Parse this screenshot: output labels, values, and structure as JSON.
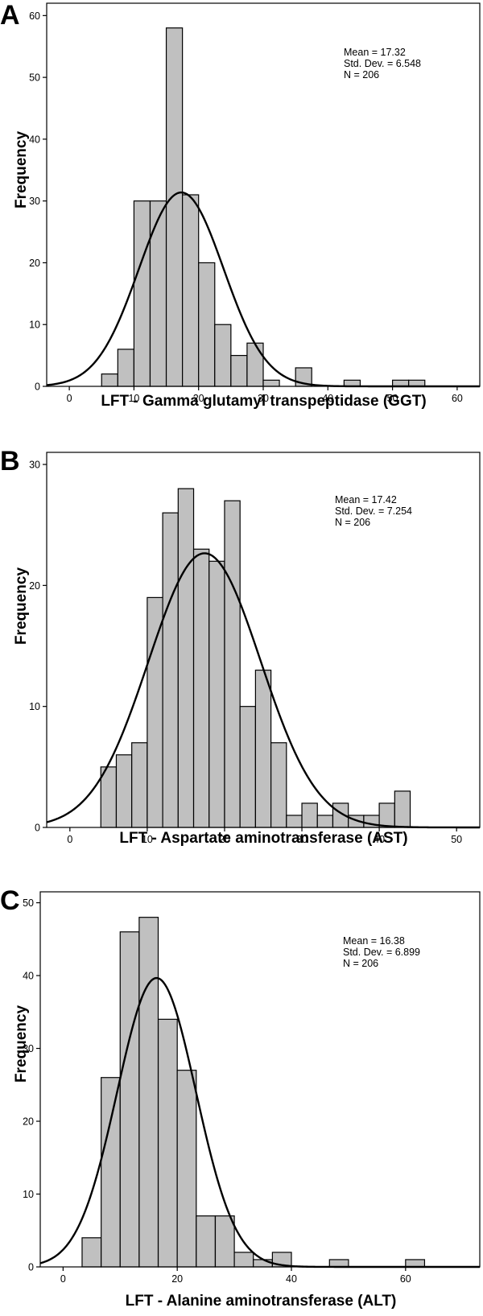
{
  "chart_data": [
    {
      "panel": "A",
      "type": "bar",
      "xlabel": "LFT - Gamma glutamyl transpeptidase (GGT)",
      "ylabel": "Frequency",
      "xlim": [
        -3.5,
        63.5
      ],
      "ylim": [
        0,
        62
      ],
      "xticks": [
        0,
        10,
        20,
        30,
        40,
        50,
        60
      ],
      "yticks": [
        0,
        10,
        20,
        30,
        40,
        50,
        60
      ],
      "bin_width": 2.5,
      "bins": [
        {
          "x0": 5,
          "count": 2
        },
        {
          "x0": 7.5,
          "count": 6
        },
        {
          "x0": 10,
          "count": 30
        },
        {
          "x0": 12.5,
          "count": 30
        },
        {
          "x0": 15,
          "count": 58
        },
        {
          "x0": 17.5,
          "count": 31
        },
        {
          "x0": 20,
          "count": 20
        },
        {
          "x0": 22.5,
          "count": 10
        },
        {
          "x0": 25,
          "count": 5
        },
        {
          "x0": 27.5,
          "count": 7
        },
        {
          "x0": 30,
          "count": 1
        },
        {
          "x0": 35,
          "count": 3
        },
        {
          "x0": 42.5,
          "count": 1
        },
        {
          "x0": 50,
          "count": 1
        },
        {
          "x0": 52.5,
          "count": 1
        }
      ],
      "stats": {
        "mean": "Mean = 17.32",
        "sd": "Std. Dev. = 6.548",
        "n": "N = 206"
      },
      "curve": {
        "mean": 17.32,
        "sd": 6.548,
        "n": 206
      }
    },
    {
      "panel": "B",
      "type": "bar",
      "xlabel": "LFT - Aspartate aminotransferase (AST)",
      "ylabel": "Frequency",
      "xlim": [
        -3,
        53
      ],
      "ylim": [
        0,
        31
      ],
      "xticks": [
        0,
        10,
        20,
        30,
        40,
        50
      ],
      "yticks": [
        0,
        10,
        20,
        30
      ],
      "bin_width": 2,
      "bins": [
        {
          "x0": 4,
          "count": 5
        },
        {
          "x0": 6,
          "count": 6
        },
        {
          "x0": 8,
          "count": 7
        },
        {
          "x0": 10,
          "count": 19
        },
        {
          "x0": 12,
          "count": 26
        },
        {
          "x0": 14,
          "count": 28
        },
        {
          "x0": 16,
          "count": 23
        },
        {
          "x0": 18,
          "count": 22
        },
        {
          "x0": 20,
          "count": 27
        },
        {
          "x0": 22,
          "count": 10
        },
        {
          "x0": 24,
          "count": 13
        },
        {
          "x0": 26,
          "count": 7
        },
        {
          "x0": 28,
          "count": 1
        },
        {
          "x0": 30,
          "count": 2
        },
        {
          "x0": 32,
          "count": 1
        },
        {
          "x0": 34,
          "count": 2
        },
        {
          "x0": 36,
          "count": 1
        },
        {
          "x0": 38,
          "count": 1
        },
        {
          "x0": 40,
          "count": 2
        },
        {
          "x0": 42,
          "count": 3
        }
      ],
      "stats": {
        "mean": "Mean = 17.42",
        "sd": "Std. Dev. = 7.254",
        "n": "N = 206"
      },
      "curve": {
        "mean": 17.42,
        "sd": 7.254,
        "n": 206
      }
    },
    {
      "panel": "C",
      "type": "bar",
      "xlabel": "LFT - Alanine aminotransferase (ALT)",
      "ylabel": "Frequency",
      "xlim": [
        -4,
        73
      ],
      "ylim": [
        0,
        51.5
      ],
      "xticks": [
        0,
        20,
        40,
        60
      ],
      "yticks": [
        0,
        10,
        20,
        30,
        40,
        50
      ],
      "bin_width": 3.33,
      "bins": [
        {
          "x0": 3.33,
          "count": 4
        },
        {
          "x0": 6.67,
          "count": 26
        },
        {
          "x0": 10,
          "count": 46
        },
        {
          "x0": 13.33,
          "count": 48
        },
        {
          "x0": 16.67,
          "count": 34
        },
        {
          "x0": 20,
          "count": 27
        },
        {
          "x0": 23.33,
          "count": 7
        },
        {
          "x0": 26.67,
          "count": 7
        },
        {
          "x0": 30,
          "count": 2
        },
        {
          "x0": 33.33,
          "count": 1
        },
        {
          "x0": 36.67,
          "count": 2
        },
        {
          "x0": 46.67,
          "count": 1
        },
        {
          "x0": 60,
          "count": 1
        }
      ],
      "stats": {
        "mean": "Mean = 16.38",
        "sd": "Std. Dev. = 6.899",
        "n": "N = 206"
      },
      "curve": {
        "mean": 16.38,
        "sd": 6.899,
        "n": 206
      }
    }
  ]
}
